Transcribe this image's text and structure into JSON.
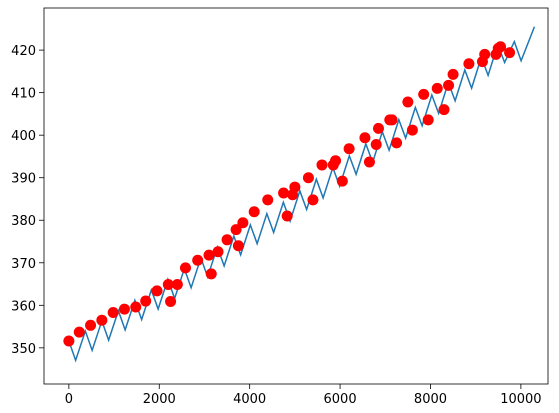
{
  "chart_data": {
    "type": "line",
    "xlim": [
      -550,
      10600
    ],
    "ylim": [
      341.5,
      429.9
    ],
    "xticks": [
      0,
      2000,
      4000,
      6000,
      8000,
      10000
    ],
    "yticks": [
      350,
      360,
      370,
      380,
      390,
      400,
      410,
      420
    ],
    "series": [
      {
        "type": "line",
        "color": "#1f77b4",
        "x": [
          0,
          150,
          365,
          515,
          730,
          880,
          1095,
          1245,
          1460,
          1610,
          1825,
          1975,
          2190,
          2340,
          2555,
          2705,
          2920,
          3070,
          3285,
          3435,
          3650,
          3800,
          4015,
          4165,
          4380,
          4530,
          4745,
          4895,
          5110,
          5260,
          5475,
          5625,
          5840,
          5990,
          6205,
          6355,
          6570,
          6720,
          6935,
          7085,
          7300,
          7450,
          7665,
          7815,
          8030,
          8180,
          8395,
          8545,
          8760,
          8910,
          9125,
          9275,
          9490,
          9640,
          9855,
          10005,
          10300
        ],
        "values": [
          351.6,
          347.06,
          353.95,
          349.42,
          356.33,
          351.81,
          358.73,
          354.22,
          361.16,
          356.66,
          363.61,
          359.13,
          366.1,
          361.62,
          368.61,
          364.14,
          371.14,
          366.69,
          373.7,
          369.26,
          376.29,
          371.86,
          378.91,
          374.49,
          381.55,
          377.14,
          384.22,
          379.82,
          386.92,
          382.53,
          389.64,
          385.26,
          392.39,
          388.02,
          395.16,
          390.81,
          397.96,
          393.62,
          400.79,
          396.46,
          403.65,
          399.33,
          406.53,
          402.22,
          409.44,
          405.14,
          412.38,
          408.09,
          415.34,
          411.06,
          418.33,
          414.06,
          421.34,
          417.09,
          422.0,
          417.5,
          425.5
        ]
      },
      {
        "type": "scatter",
        "color": "#ff0000",
        "x": [
          0,
          230,
          480,
          730,
          980,
          1230,
          1480,
          1700,
          1950,
          2200,
          2250,
          2400,
          2580,
          2850,
          3100,
          3150,
          3300,
          3500,
          3700,
          3750,
          3850,
          4100,
          4400,
          4750,
          4830,
          4950,
          5000,
          5300,
          5400,
          5600,
          5850,
          5900,
          6050,
          6200,
          6550,
          6650,
          6800,
          6850,
          7100,
          7150,
          7250,
          7500,
          7600,
          7850,
          7950,
          8150,
          8300,
          8400,
          8500,
          8850,
          9150,
          9200,
          9450,
          9500,
          9550,
          9750
        ],
        "values": [
          351.6,
          353.7,
          355.3,
          356.5,
          358.3,
          359.1,
          359.6,
          361,
          363.4,
          364.9,
          360.9,
          364.9,
          368.8,
          370.6,
          371.8,
          367.4,
          372.6,
          375.4,
          377.8,
          374,
          379.4,
          382,
          384.8,
          386.4,
          381,
          386,
          387.8,
          390,
          384.8,
          393,
          393,
          394,
          389.2,
          396.8,
          399.4,
          393.7,
          397.8,
          401.6,
          403.6,
          403.6,
          398.2,
          407.8,
          401.2,
          409.6,
          403.6,
          411,
          406,
          411.7,
          414.3,
          416.8,
          417.3,
          419,
          419,
          420.4,
          420.8,
          419.4
        ]
      }
    ]
  }
}
